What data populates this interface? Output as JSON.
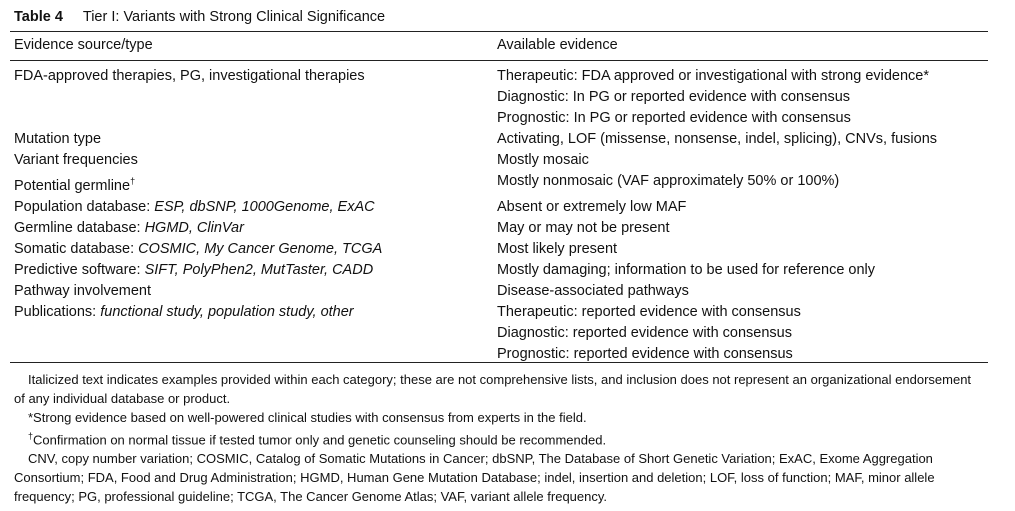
{
  "table_number": "Table 4",
  "title": "Tier I: Variants with Strong Clinical Significance",
  "headers": [
    "Evidence source/type",
    "Available evidence"
  ],
  "rows": [
    {
      "source": {
        "label": "FDA-approved therapies, PG, investigational therapies"
      },
      "evidence": [
        "Therapeutic: FDA approved or investigational with strong evidence*",
        "Diagnostic: In PG or reported evidence with consensus",
        "Prognostic: In PG or reported evidence with consensus"
      ]
    },
    {
      "source": {
        "label": "Mutation type"
      },
      "evidence": [
        "Activating, LOF (missense, nonsense, indel, splicing), CNVs, fusions"
      ]
    },
    {
      "source": {
        "label": "Variant frequencies"
      },
      "evidence": [
        "Mostly mosaic"
      ]
    },
    {
      "source": {
        "label": "Potential germline",
        "note": "†"
      },
      "evidence": [
        "Mostly nonmosaic (VAF approximately 50% or 100%)"
      ]
    },
    {
      "source": {
        "label": "Population database:",
        "examples": "ESP, dbSNP, 1000Genome, ExAC"
      },
      "evidence": [
        "Absent or extremely low MAF"
      ]
    },
    {
      "source": {
        "label": "Germline database:",
        "examples": "HGMD, ClinVar"
      },
      "evidence": [
        "May or may not be present"
      ]
    },
    {
      "source": {
        "label": "Somatic database:",
        "examples": "COSMIC, My Cancer Genome, TCGA"
      },
      "evidence": [
        "Most likely present"
      ]
    },
    {
      "source": {
        "label": "Predictive software:",
        "examples": "SIFT, PolyPhen2, MutTaster, CADD"
      },
      "evidence": [
        "Mostly damaging; information to be used for reference only"
      ]
    },
    {
      "source": {
        "label": "Pathway involvement"
      },
      "evidence": [
        "Disease-associated pathways"
      ]
    },
    {
      "source": {
        "label": "Publications:",
        "examples": "functional study, population study, other"
      },
      "evidence": [
        "Therapeutic: reported evidence with consensus",
        "Diagnostic: reported evidence with consensus",
        "Prognostic: reported evidence with consensus"
      ]
    }
  ],
  "footnotes": [
    {
      "text": "Italicized text indicates examples provided within each category; these are not comprehensive lists, and inclusion does not represent an organizational endorsement of any individual database or product."
    },
    {
      "text": "*Strong evidence based on well-powered clinical studies with consensus from experts in the field."
    },
    {
      "mark": "†",
      "text": "Confirmation on normal tissue if tested tumor only and genetic counseling should be recommended."
    },
    {
      "text": "CNV, copy number variation; COSMIC, Catalog of Somatic Mutations in Cancer; dbSNP, The Database of Short Genetic Variation; ExAC, Exome Aggregation Consortium; FDA, Food and Drug Administration; HGMD, Human Gene Mutation Database; indel, insertion and deletion; LOF, loss of function; MAF, minor allele frequency; PG, professional guideline; TCGA, The Cancer Genome Atlas; VAF, variant allele frequency."
    }
  ]
}
